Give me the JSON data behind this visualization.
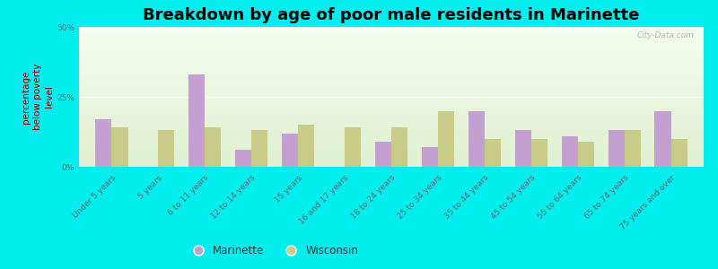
{
  "title": "Breakdown by age of poor male residents in Marinette",
  "categories": [
    "Under 5 years",
    "5 years",
    "6 to 11 years",
    "12 to 14 years",
    "15 years",
    "16 and 17 years",
    "18 to 24 years",
    "25 to 34 years",
    "35 to 44 years",
    "45 to 54 years",
    "55 to 64 years",
    "65 to 74 years",
    "75 years and over"
  ],
  "marinette_values": [
    17,
    0,
    33,
    6,
    12,
    0,
    9,
    7,
    20,
    13,
    11,
    13,
    20
  ],
  "wisconsin_values": [
    14,
    13,
    14,
    13,
    15,
    14,
    14,
    20,
    10,
    10,
    9,
    13,
    10
  ],
  "marinette_color": "#c4a0d0",
  "wisconsin_color": "#c8cc88",
  "background_color": "#00eeee",
  "plot_bg_top": "#e8f0d8",
  "plot_bg_bottom": "#f4f8ec",
  "ylabel": "percentage\nbelow poverty\nlevel",
  "ylim": [
    0,
    50
  ],
  "yticks": [
    0,
    25,
    50
  ],
  "ytick_labels": [
    "0%",
    "25%",
    "50%"
  ],
  "bar_width": 0.35,
  "title_fontsize": 13,
  "axis_label_fontsize": 7.5,
  "tick_fontsize": 6.5,
  "legend_labels": [
    "Marinette",
    "Wisconsin"
  ],
  "watermark": "City-Data.com"
}
